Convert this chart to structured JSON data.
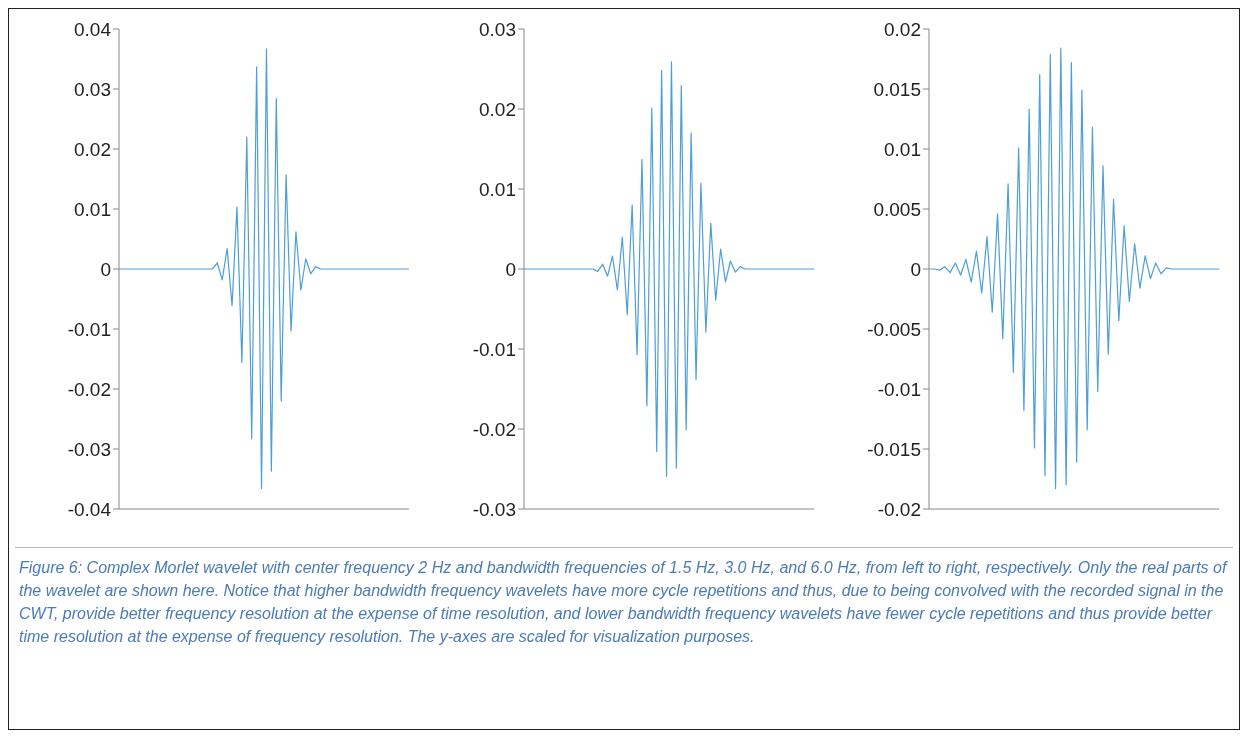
{
  "chart_data": [
    {
      "type": "line",
      "categories": [
        null,
        null,
        null,
        null,
        null,
        null,
        null,
        null,
        null,
        null,
        null,
        null,
        null,
        null,
        null,
        null,
        null,
        null,
        null,
        null,
        null,
        null,
        null,
        null,
        null,
        null,
        null,
        null,
        null,
        null,
        null,
        null,
        null,
        null,
        null,
        null,
        null,
        null,
        null,
        null,
        null,
        null,
        null,
        null,
        null,
        null,
        null,
        null,
        null,
        null,
        null,
        null,
        null,
        null,
        null,
        null,
        null,
        null,
        null,
        null
      ],
      "series": [
        {
          "color": "#4d9fd6",
          "values": [
            0,
            0,
            0,
            0,
            0,
            0,
            0,
            0,
            0,
            0,
            0,
            0,
            0,
            0,
            0,
            0,
            0,
            0,
            0,
            0,
            0.001,
            -0.0018,
            0.0034,
            -0.0061,
            0.0103,
            -0.0156,
            0.022,
            -0.0283,
            0.0337,
            -0.0366,
            0.0367,
            -0.0337,
            0.0284,
            -0.022,
            0.0157,
            -0.0103,
            0.0062,
            -0.0035,
            0.0017,
            -0.0008,
            0.0004,
            0,
            0,
            0,
            0,
            0,
            0,
            0,
            0,
            0,
            0,
            0,
            0,
            0,
            0,
            0,
            0,
            0,
            0,
            0
          ]
        }
      ],
      "ylim": [
        -0.04,
        0.04
      ],
      "yticks": [
        -0.04,
        -0.03,
        -0.02,
        -0.01,
        0,
        0.01,
        0.02,
        0.03,
        0.04
      ],
      "tick_labels": "y",
      "grid": false,
      "legend": false,
      "marker": "none",
      "line_style": "solid",
      "annotations": [
        "Figure 6: Complex Morlet wavelet with center frequency 2 Hz and bandwidth frequencies of 1.5 Hz, 3.0 Hz, and 6.0 Hz, from left to right, respectively. Only the real parts of the wavelet are shown here. Notice that higher bandwidth frequency wavelets have more cycle repetitions and thus, due to being convolved with the recorded signal in the CWT, provide better frequency resolution at the expense of time resolution, and lower bandwidth frequency wavelets have fewer cycle repetitions and thus provide better time resolution at the expense of frequency resolution. The y-axes are scaled for visualization purposes."
      ]
    },
    {
      "type": "line",
      "categories": [
        null,
        null,
        null,
        null,
        null,
        null,
        null,
        null,
        null,
        null,
        null,
        null,
        null,
        null,
        null,
        null,
        null,
        null,
        null,
        null,
        null,
        null,
        null,
        null,
        null,
        null,
        null,
        null,
        null,
        null,
        null,
        null,
        null,
        null,
        null,
        null,
        null,
        null,
        null,
        null,
        null,
        null,
        null,
        null,
        null,
        null,
        null,
        null,
        null,
        null,
        null,
        null,
        null,
        null,
        null,
        null,
        null,
        null,
        null,
        null
      ],
      "series": [
        {
          "color": "#4d9fd6",
          "values": [
            0,
            0,
            0,
            0,
            0,
            0,
            0,
            0,
            0,
            0,
            0,
            0,
            0,
            0,
            0,
            -0.0003,
            0.0006,
            -0.0009,
            0.0016,
            -0.0026,
            0.004,
            -0.0057,
            0.008,
            -0.0107,
            0.0137,
            -0.0171,
            0.0201,
            -0.0228,
            0.0248,
            -0.0259,
            0.0259,
            -0.0249,
            0.0229,
            -0.0201,
            0.017,
            -0.0138,
            0.0107,
            -0.0079,
            0.0057,
            -0.0039,
            0.0025,
            -0.0016,
            0.001,
            -0.0004,
            0.0003,
            0,
            0,
            0,
            0,
            0,
            0,
            0,
            0,
            0,
            0,
            0,
            0,
            0,
            0,
            0
          ]
        }
      ],
      "ylim": [
        -0.03,
        0.03
      ],
      "yticks": [
        -0.03,
        -0.02,
        -0.01,
        0,
        0.01,
        0.02,
        0.03
      ],
      "tick_labels": "y",
      "grid": false,
      "legend": false,
      "marker": "none",
      "line_style": "solid"
    },
    {
      "type": "line",
      "categories": [
        null,
        null,
        null,
        null,
        null,
        null,
        null,
        null,
        null,
        null,
        null,
        null,
        null,
        null,
        null,
        null,
        null,
        null,
        null,
        null,
        null,
        null,
        null,
        null,
        null,
        null,
        null,
        null,
        null,
        null,
        null,
        null,
        null,
        null,
        null,
        null,
        null,
        null,
        null,
        null,
        null,
        null,
        null,
        null,
        null,
        null,
        null,
        null,
        null,
        null,
        null,
        null,
        null,
        null,
        null,
        null
      ],
      "series": [
        {
          "color": "#4d9fd6",
          "values": [
            0,
            0,
            -0.0001,
            0.0002,
            -0.0003,
            0.0005,
            -0.0005,
            0.0008,
            -0.0011,
            0.0015,
            -0.002,
            0.0027,
            -0.0036,
            0.0046,
            -0.0058,
            0.0071,
            -0.0086,
            0.0101,
            -0.0118,
            0.0133,
            -0.0149,
            0.0162,
            -0.0172,
            0.0179,
            -0.0183,
            0.0184,
            -0.018,
            0.0172,
            -0.0161,
            0.0149,
            -0.0134,
            0.0118,
            -0.0102,
            0.0086,
            -0.0071,
            0.0058,
            -0.0043,
            0.0036,
            -0.0027,
            0.0021,
            -0.0016,
            0.0011,
            -0.0008,
            0.0005,
            -0.0004,
            0.0001,
            0,
            0,
            0,
            0,
            0,
            0,
            0,
            0,
            0,
            0
          ]
        }
      ],
      "ylim": [
        -0.02,
        0.02
      ],
      "yticks": [
        -0.02,
        -0.015,
        -0.01,
        -0.005,
        0,
        0.005,
        0.01,
        0.015,
        0.02
      ],
      "tick_labels": "y",
      "grid": false,
      "legend": false,
      "marker": "none",
      "line_style": "solid"
    }
  ]
}
